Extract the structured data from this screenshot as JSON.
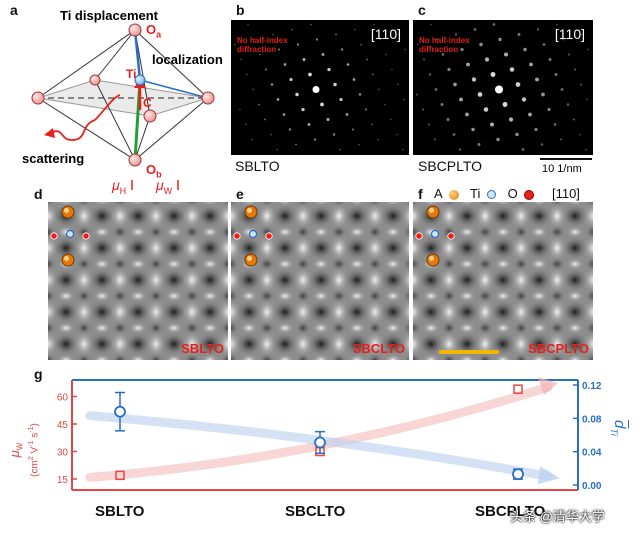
{
  "panels": {
    "a": {
      "letter": "a",
      "title": "Ti displacement",
      "label_oa": "O",
      "label_oa_sub": "a",
      "label_loc": "localization",
      "label_ti": "Ti",
      "label_c": "C",
      "label_scatter": "scattering",
      "label_ob": "O",
      "label_ob_sub": "b",
      "mu_h": "μ",
      "mu_h_sub": "H",
      "mu_w": "μ",
      "mu_w_sub": "W"
    },
    "b": {
      "letter": "b",
      "note": "No half-index diffraction",
      "zone": "[110]",
      "caption": "SBLTO"
    },
    "c": {
      "letter": "c",
      "note": "No half-index diffraction",
      "zone": "[110]",
      "caption": "SBCPLTO",
      "scalebar": "10 1/nm"
    },
    "d": {
      "letter": "d",
      "label": "SBLTO"
    },
    "e": {
      "letter": "e",
      "label": "SBCLTO"
    },
    "f": {
      "letter": "f",
      "label": "SBCPLTO",
      "legend_a": "A",
      "legend_ti": "Ti",
      "legend_o": "O",
      "legend_zone": "[110]"
    },
    "g": {
      "letter": "g"
    }
  },
  "colors": {
    "left_axis": "#e64545",
    "right_axis": "#2a6fc2",
    "label_red": "#e8201c",
    "scalebar_yellow": "#f2b600"
  },
  "watermark": "头条 @清华大学",
  "chart_data": {
    "type": "scatter",
    "categories": [
      "SBLTO",
      "SBCLTO",
      "SBCPLTO"
    ],
    "left_axis": {
      "label_parts": [
        "μ",
        "W",
        "(cm",
        "2",
        " V",
        "-1",
        "s",
        "-1",
        ")"
      ],
      "ticks": [
        15,
        30,
        45,
        60
      ],
      "ylim": [
        9,
        69
      ]
    },
    "right_axis": {
      "label": "d",
      "label_sub": "Ti",
      "ticks": [
        "0.00",
        "0.04",
        "0.08",
        "0.12"
      ],
      "ylim": [
        -0.006,
        0.126
      ]
    },
    "series": [
      {
        "axis": "left",
        "marker": "square",
        "values": [
          17,
          30,
          64
        ]
      },
      {
        "axis": "right",
        "marker": "circle",
        "values": [
          0.088,
          0.051,
          0.013
        ],
        "errors": [
          0.023,
          0.013,
          0.006
        ]
      }
    ]
  }
}
